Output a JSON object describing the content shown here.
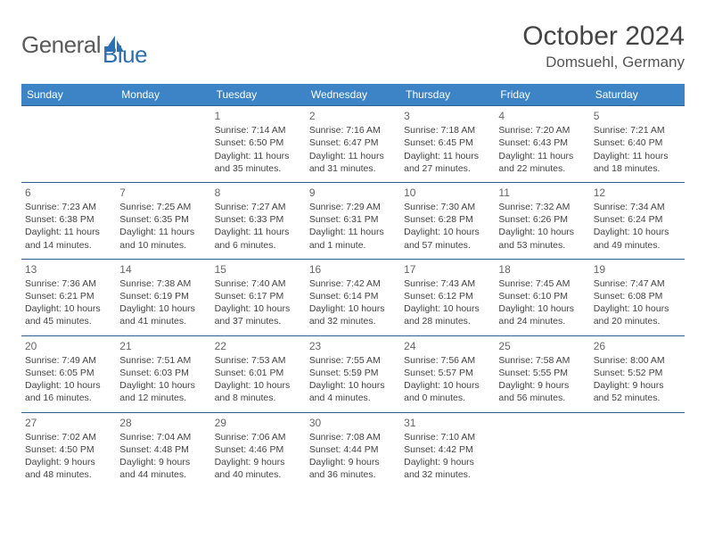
{
  "brand": {
    "part1": "General",
    "part2": "Blue"
  },
  "title": "October 2024",
  "location": "Domsuehl, Germany",
  "colors": {
    "header_bg": "#3c84c6",
    "header_text": "#ffffff",
    "row_border": "#2f5f8f",
    "text": "#444444",
    "daynum": "#666666",
    "brand_gray": "#6f6f6f",
    "brand_blue": "#2c6fb3"
  },
  "layout": {
    "cols": 7,
    "rows": 5,
    "first_day_col": 2
  },
  "weekdays": [
    "Sunday",
    "Monday",
    "Tuesday",
    "Wednesday",
    "Thursday",
    "Friday",
    "Saturday"
  ],
  "days": [
    {
      "n": 1,
      "sr": "7:14 AM",
      "ss": "6:50 PM",
      "dl": "11 hours and 35 minutes."
    },
    {
      "n": 2,
      "sr": "7:16 AM",
      "ss": "6:47 PM",
      "dl": "11 hours and 31 minutes."
    },
    {
      "n": 3,
      "sr": "7:18 AM",
      "ss": "6:45 PM",
      "dl": "11 hours and 27 minutes."
    },
    {
      "n": 4,
      "sr": "7:20 AM",
      "ss": "6:43 PM",
      "dl": "11 hours and 22 minutes."
    },
    {
      "n": 5,
      "sr": "7:21 AM",
      "ss": "6:40 PM",
      "dl": "11 hours and 18 minutes."
    },
    {
      "n": 6,
      "sr": "7:23 AM",
      "ss": "6:38 PM",
      "dl": "11 hours and 14 minutes."
    },
    {
      "n": 7,
      "sr": "7:25 AM",
      "ss": "6:35 PM",
      "dl": "11 hours and 10 minutes."
    },
    {
      "n": 8,
      "sr": "7:27 AM",
      "ss": "6:33 PM",
      "dl": "11 hours and 6 minutes."
    },
    {
      "n": 9,
      "sr": "7:29 AM",
      "ss": "6:31 PM",
      "dl": "11 hours and 1 minute."
    },
    {
      "n": 10,
      "sr": "7:30 AM",
      "ss": "6:28 PM",
      "dl": "10 hours and 57 minutes."
    },
    {
      "n": 11,
      "sr": "7:32 AM",
      "ss": "6:26 PM",
      "dl": "10 hours and 53 minutes."
    },
    {
      "n": 12,
      "sr": "7:34 AM",
      "ss": "6:24 PM",
      "dl": "10 hours and 49 minutes."
    },
    {
      "n": 13,
      "sr": "7:36 AM",
      "ss": "6:21 PM",
      "dl": "10 hours and 45 minutes."
    },
    {
      "n": 14,
      "sr": "7:38 AM",
      "ss": "6:19 PM",
      "dl": "10 hours and 41 minutes."
    },
    {
      "n": 15,
      "sr": "7:40 AM",
      "ss": "6:17 PM",
      "dl": "10 hours and 37 minutes."
    },
    {
      "n": 16,
      "sr": "7:42 AM",
      "ss": "6:14 PM",
      "dl": "10 hours and 32 minutes."
    },
    {
      "n": 17,
      "sr": "7:43 AM",
      "ss": "6:12 PM",
      "dl": "10 hours and 28 minutes."
    },
    {
      "n": 18,
      "sr": "7:45 AM",
      "ss": "6:10 PM",
      "dl": "10 hours and 24 minutes."
    },
    {
      "n": 19,
      "sr": "7:47 AM",
      "ss": "6:08 PM",
      "dl": "10 hours and 20 minutes."
    },
    {
      "n": 20,
      "sr": "7:49 AM",
      "ss": "6:05 PM",
      "dl": "10 hours and 16 minutes."
    },
    {
      "n": 21,
      "sr": "7:51 AM",
      "ss": "6:03 PM",
      "dl": "10 hours and 12 minutes."
    },
    {
      "n": 22,
      "sr": "7:53 AM",
      "ss": "6:01 PM",
      "dl": "10 hours and 8 minutes."
    },
    {
      "n": 23,
      "sr": "7:55 AM",
      "ss": "5:59 PM",
      "dl": "10 hours and 4 minutes."
    },
    {
      "n": 24,
      "sr": "7:56 AM",
      "ss": "5:57 PM",
      "dl": "10 hours and 0 minutes."
    },
    {
      "n": 25,
      "sr": "7:58 AM",
      "ss": "5:55 PM",
      "dl": "9 hours and 56 minutes."
    },
    {
      "n": 26,
      "sr": "8:00 AM",
      "ss": "5:52 PM",
      "dl": "9 hours and 52 minutes."
    },
    {
      "n": 27,
      "sr": "7:02 AM",
      "ss": "4:50 PM",
      "dl": "9 hours and 48 minutes."
    },
    {
      "n": 28,
      "sr": "7:04 AM",
      "ss": "4:48 PM",
      "dl": "9 hours and 44 minutes."
    },
    {
      "n": 29,
      "sr": "7:06 AM",
      "ss": "4:46 PM",
      "dl": "9 hours and 40 minutes."
    },
    {
      "n": 30,
      "sr": "7:08 AM",
      "ss": "4:44 PM",
      "dl": "9 hours and 36 minutes."
    },
    {
      "n": 31,
      "sr": "7:10 AM",
      "ss": "4:42 PM",
      "dl": "9 hours and 32 minutes."
    }
  ],
  "labels": {
    "sunrise": "Sunrise:",
    "sunset": "Sunset:",
    "daylight": "Daylight:"
  }
}
